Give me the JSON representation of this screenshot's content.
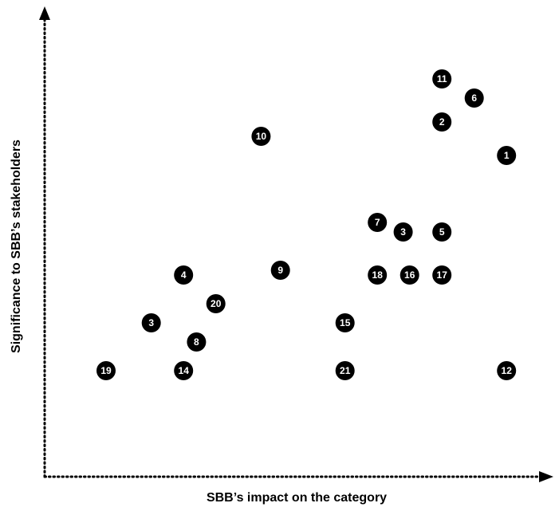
{
  "chart_data": {
    "type": "scatter",
    "title": "",
    "xlabel": "SBB’s impact on the category",
    "ylabel": "Significance to SBB’s stakeholders",
    "grid": false,
    "marker": "numbered black circle",
    "colors": {
      "marker": "#000000",
      "label": "#ffffff",
      "axis": "#000000"
    },
    "points": [
      {
        "label": "11",
        "x": 6.2,
        "y": 8.5
      },
      {
        "label": "6",
        "x": 6.7,
        "y": 8.1
      },
      {
        "label": "2",
        "x": 6.2,
        "y": 7.6
      },
      {
        "label": "10",
        "x": 3.4,
        "y": 7.3
      },
      {
        "label": "1",
        "x": 7.2,
        "y": 6.9
      },
      {
        "label": "7",
        "x": 5.2,
        "y": 5.5
      },
      {
        "label": "3",
        "x": 5.6,
        "y": 5.3
      },
      {
        "label": "5",
        "x": 6.2,
        "y": 5.3
      },
      {
        "label": "9",
        "x": 3.7,
        "y": 4.5
      },
      {
        "label": "4",
        "x": 2.2,
        "y": 4.4
      },
      {
        "label": "18",
        "x": 5.2,
        "y": 4.4
      },
      {
        "label": "16",
        "x": 5.7,
        "y": 4.4
      },
      {
        "label": "17",
        "x": 6.2,
        "y": 4.4
      },
      {
        "label": "20",
        "x": 2.7,
        "y": 3.8
      },
      {
        "label": "3",
        "x": 1.7,
        "y": 3.4
      },
      {
        "label": "15",
        "x": 4.7,
        "y": 3.4
      },
      {
        "label": "8",
        "x": 2.4,
        "y": 3.0
      },
      {
        "label": "19",
        "x": 1.0,
        "y": 2.4
      },
      {
        "label": "14",
        "x": 2.2,
        "y": 2.4
      },
      {
        "label": "21",
        "x": 4.7,
        "y": 2.4
      },
      {
        "label": "12",
        "x": 7.2,
        "y": 2.4
      }
    ]
  }
}
